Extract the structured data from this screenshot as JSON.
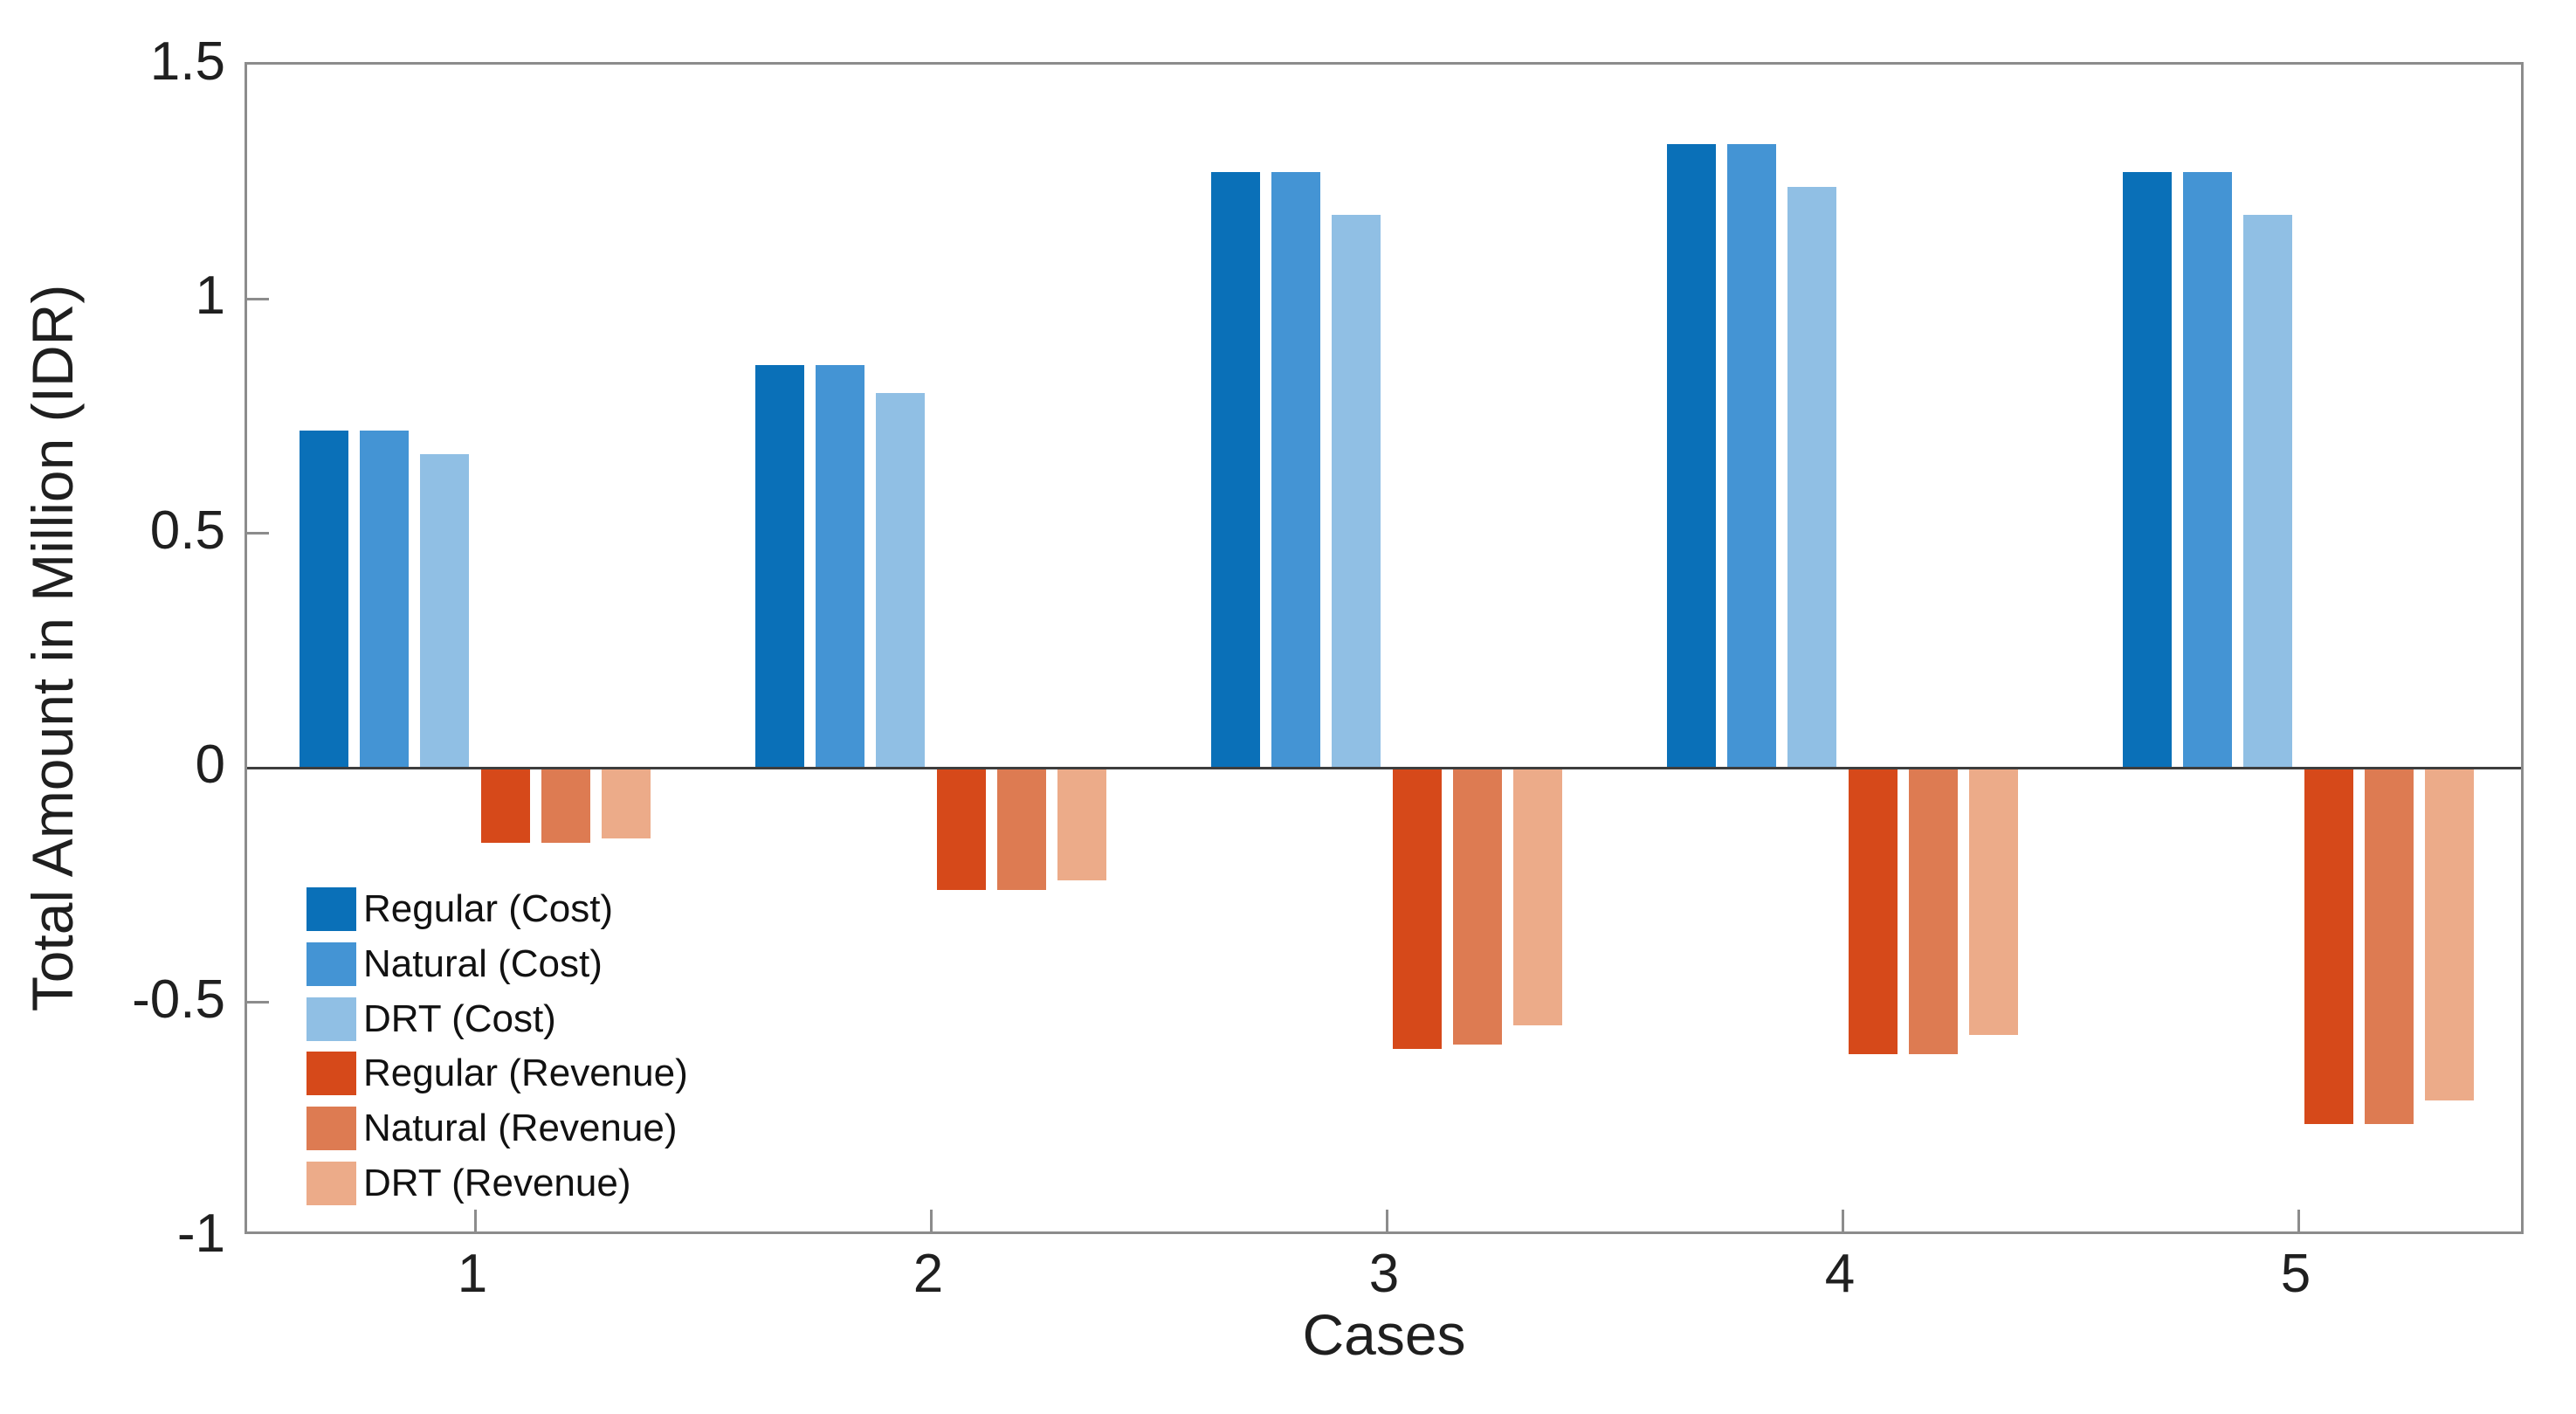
{
  "figure": {
    "background": "#ffffff",
    "axis_color": "#8c8c8c",
    "zero_line_color": "#3d3d3d",
    "text_color": "#1f1f1f"
  },
  "chart_data": {
    "type": "bar",
    "title": "",
    "xlabel": "Cases",
    "ylabel": "Total Amount in Million (IDR)",
    "categories": [
      "1",
      "2",
      "3",
      "4",
      "5"
    ],
    "series": [
      {
        "name": "Regular (Cost)",
        "color": "#0a70b8",
        "values": [
          0.72,
          0.86,
          1.27,
          1.33,
          1.27
        ]
      },
      {
        "name": "Natural (Cost)",
        "color": "#4494d4",
        "values": [
          0.72,
          0.86,
          1.27,
          1.33,
          1.27
        ]
      },
      {
        "name": "DRT (Cost)",
        "color": "#90bfe4",
        "values": [
          0.67,
          0.8,
          1.18,
          1.24,
          1.18
        ]
      },
      {
        "name": "Regular (Revenue)",
        "color": "#d6491a",
        "values": [
          -0.16,
          -0.26,
          -0.6,
          -0.61,
          -0.76
        ]
      },
      {
        "name": "Natural (Revenue)",
        "color": "#dd7b52",
        "values": [
          -0.16,
          -0.26,
          -0.59,
          -0.61,
          -0.76
        ]
      },
      {
        "name": "DRT (Revenue)",
        "color": "#ecab89",
        "values": [
          -0.15,
          -0.24,
          -0.55,
          -0.57,
          -0.71
        ]
      }
    ],
    "ylim": [
      -1,
      1.5
    ],
    "yticks": [
      1.5,
      1,
      0.5,
      0,
      -0.5,
      -1
    ],
    "ytick_labels": [
      "1.5",
      "1",
      "0.5",
      "0",
      "-0.5",
      "-1"
    ],
    "grid": false,
    "legend_position": "inside-lower-left",
    "baseline": 0
  }
}
